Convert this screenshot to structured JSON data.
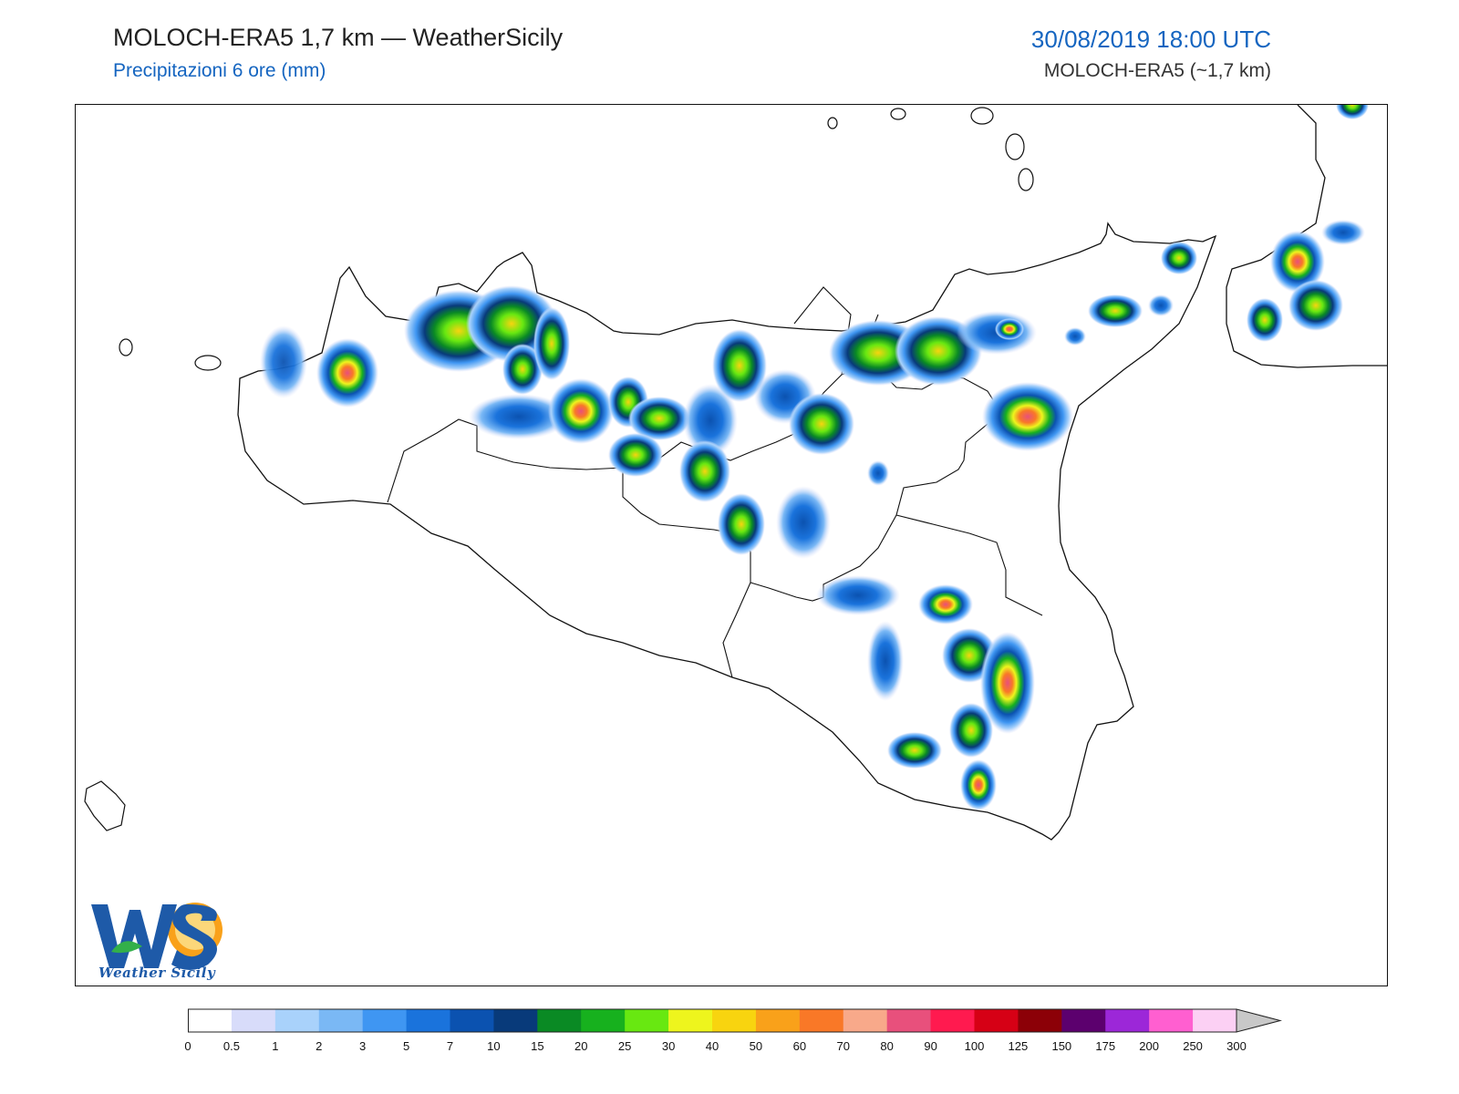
{
  "header": {
    "title": "MOLOCH-ERA5 1,7 km — WeatherSicily",
    "subtitle": "Precipitazioni 6 ore (mm)",
    "datetime": "30/08/2019 18:00 UTC",
    "model_info": "MOLOCH-ERA5 (~1,7 km)"
  },
  "logo": {
    "text": "Weather Sicily",
    "letters": "WS"
  },
  "colorbar": {
    "ticks": [
      "0",
      "0.5",
      "1",
      "2",
      "3",
      "5",
      "7",
      "10",
      "15",
      "20",
      "25",
      "30",
      "40",
      "50",
      "60",
      "70",
      "80",
      "90",
      "100",
      "125",
      "150",
      "175",
      "200",
      "250",
      "300"
    ],
    "colors": [
      "#ffffff",
      "#d8dcfa",
      "#a9d2fb",
      "#7ab8f5",
      "#3f96f2",
      "#1a73dc",
      "#0b52b0",
      "#083a7a",
      "#0a8a24",
      "#17b11e",
      "#68e811",
      "#eef51d",
      "#f8d40f",
      "#f9a11a",
      "#f97827",
      "#f8a98a",
      "#e8507c",
      "#ff1a4f",
      "#d60015",
      "#8c0007",
      "#5c006e",
      "#9c27d8",
      "#ff5fd0",
      "#fcd0f4"
    ],
    "extend_color": "#c8c8c8"
  },
  "map": {
    "region": "Sicily",
    "precip_cells": [
      {
        "lon": 0.27,
        "lat": 0.31,
        "mm": 22
      },
      {
        "lon": 0.32,
        "lat": 0.26,
        "mm": 30
      },
      {
        "lon": 0.36,
        "lat": 0.26,
        "mm": 40
      },
      {
        "lon": 0.37,
        "lat": 0.3,
        "mm": 12
      },
      {
        "lon": 0.4,
        "lat": 0.28,
        "mm": 25
      },
      {
        "lon": 0.37,
        "lat": 0.36,
        "mm": 10
      },
      {
        "lon": 0.52,
        "lat": 0.26,
        "mm": 35
      },
      {
        "lon": 0.58,
        "lat": 0.3,
        "mm": 18
      },
      {
        "lon": 0.62,
        "lat": 0.28,
        "mm": 30
      },
      {
        "lon": 0.68,
        "lat": 0.3,
        "mm": 22
      },
      {
        "lon": 0.73,
        "lat": 0.34,
        "mm": 80
      }
    ]
  }
}
